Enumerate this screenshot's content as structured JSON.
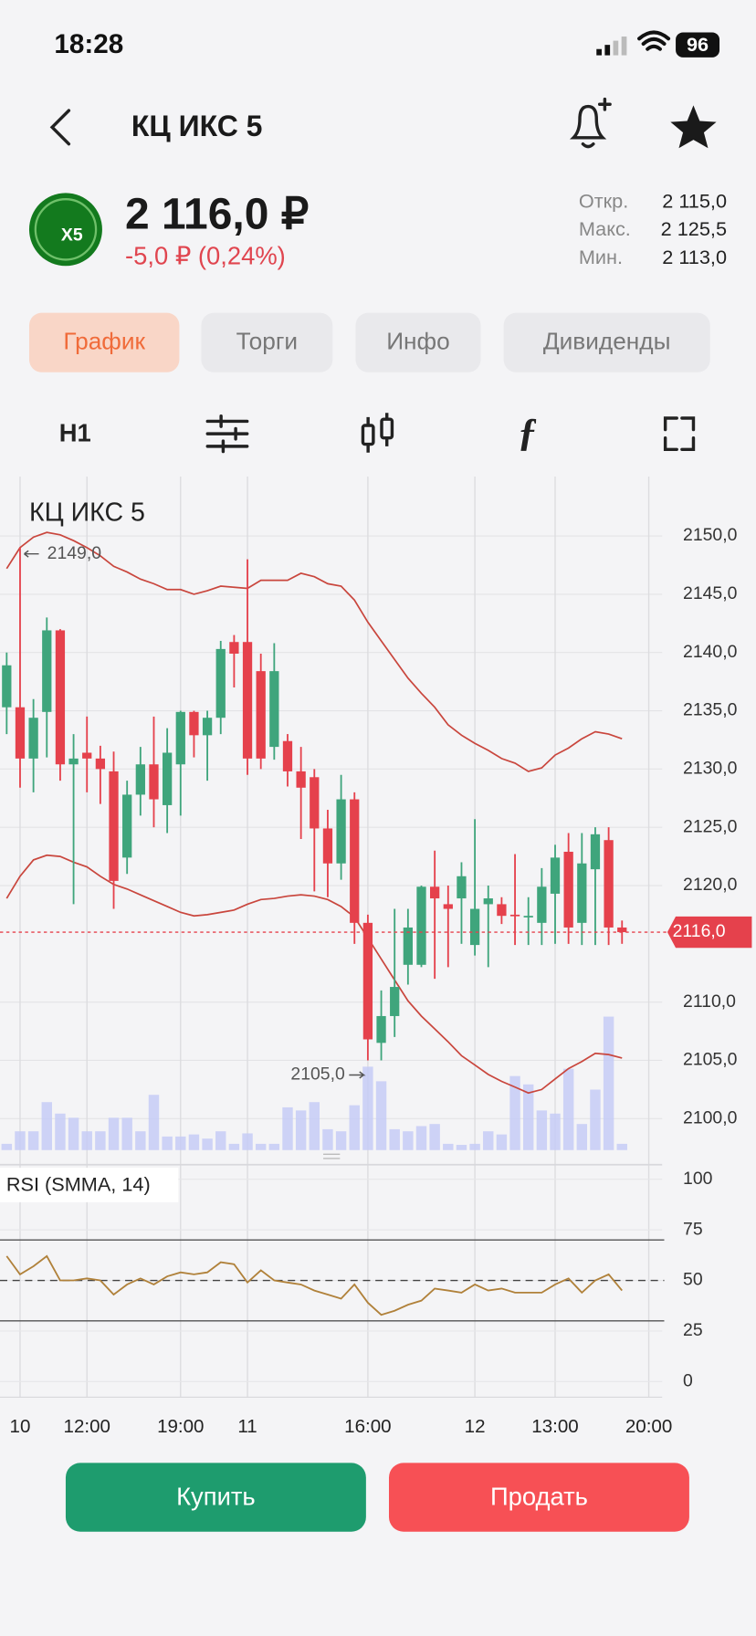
{
  "status_bar": {
    "time": "18:28",
    "battery": "96"
  },
  "header": {
    "title": "КЦ ИКС 5"
  },
  "quote": {
    "logo": "X5",
    "price": "2 116,0 ₽",
    "change": "-5,0 ₽ (0,24%)",
    "stats": [
      {
        "label": "Откр.",
        "value": "2 115,0"
      },
      {
        "label": "Макс.",
        "value": "2 125,5"
      },
      {
        "label": "Мин.",
        "value": "2 113,0"
      }
    ]
  },
  "tabs": [
    "График",
    "Торги",
    "Инфо",
    "Дивиденды"
  ],
  "toolbar": {
    "timeframe": "H1"
  },
  "chart_data": [
    {
      "type": "candlestick",
      "title": "КЦ ИКС 5",
      "open": [
        2135.3,
        2135.3,
        2130.9,
        2134.9,
        2141.9,
        2130.4,
        2131.4,
        2130.9,
        2129.8,
        2122.4,
        2127.8,
        2130.4,
        2126.9,
        2130.4,
        2134.9,
        2132.9,
        2134.4,
        2140.9,
        2140.9,
        2138.4,
        2131.9,
        2132.4,
        2129.8,
        2129.3,
        2124.9,
        2121.9,
        2127.4,
        2116.8,
        2106.5,
        2108.8,
        2113.2,
        2113.2,
        2119.9,
        2118.4,
        2118.9,
        2114.9,
        2118.4,
        2118.4,
        2117.5,
        2117.4,
        2116.8,
        2119.3,
        2122.9,
        2116.8,
        2121.4,
        2123.9,
        2116.4
      ],
      "high": [
        2140.0,
        2149.0,
        2136.0,
        2143.0,
        2142.0,
        2133.0,
        2134.5,
        2132.0,
        2131.5,
        2129.0,
        2131.9,
        2134.5,
        2133.5,
        2135.0,
        2135.0,
        2135.0,
        2141.0,
        2141.5,
        2148.0,
        2139.9,
        2140.8,
        2133.0,
        2131.9,
        2130.0,
        2126.5,
        2129.5,
        2128.0,
        2117.5,
        2111.0,
        2118.0,
        2118.0,
        2120.0,
        2123.0,
        2120.0,
        2122.0,
        2125.7,
        2120.0,
        2119.0,
        2122.7,
        2119.0,
        2121.5,
        2123.5,
        2124.5,
        2124.5,
        2125.0,
        2125.0,
        2117.0
      ],
      "low": [
        2133.0,
        2128.4,
        2128.0,
        2131.0,
        2129.0,
        2118.4,
        2128.0,
        2127.0,
        2118.0,
        2121.0,
        2126.0,
        2125.0,
        2124.5,
        2126.0,
        2131.0,
        2129.0,
        2133.0,
        2137.0,
        2129.5,
        2130.0,
        2130.8,
        2128.5,
        2124.0,
        2119.5,
        2119.0,
        2120.5,
        2115.0,
        2105.0,
        2105.0,
        2107.0,
        2111.5,
        2113.0,
        2112.0,
        2113.0,
        2115.0,
        2114.0,
        2113.0,
        2116.7,
        2114.9,
        2114.9,
        2114.9,
        2115.0,
        2115.0,
        2114.9,
        2114.9,
        2114.9,
        2115.0
      ],
      "close": [
        2138.9,
        2130.9,
        2134.4,
        2141.9,
        2130.4,
        2130.9,
        2130.9,
        2130.0,
        2120.4,
        2127.8,
        2130.4,
        2127.4,
        2131.4,
        2134.9,
        2132.9,
        2134.4,
        2140.3,
        2139.9,
        2130.9,
        2130.9,
        2138.4,
        2129.8,
        2128.4,
        2124.9,
        2121.9,
        2127.4,
        2116.8,
        2106.8,
        2108.8,
        2111.3,
        2116.4,
        2119.9,
        2118.9,
        2118.0,
        2120.8,
        2118.0,
        2118.9,
        2117.4,
        2117.4,
        2117.4,
        2119.9,
        2122.4,
        2116.4,
        2121.9,
        2124.4,
        2116.4,
        2116.0
      ],
      "volume": [
        6,
        18,
        18,
        46,
        35,
        31,
        18,
        18,
        31,
        31,
        18,
        53,
        13,
        13,
        15,
        11,
        18,
        6,
        16,
        6,
        6,
        41,
        38,
        46,
        20,
        18,
        43,
        80,
        66,
        20,
        18,
        23,
        25,
        6,
        5,
        6,
        18,
        15,
        71,
        63,
        38,
        35,
        78,
        25,
        58,
        128,
        6
      ],
      "vlim": [
        0,
        150
      ],
      "series": [
        {
          "color": "#c9463d",
          "values": [
            2147.2,
            2149.0,
            2149.9,
            2150.3,
            2150.1,
            2149.6,
            2149.0,
            2148.3,
            2147.4,
            2146.9,
            2146.3,
            2145.9,
            2145.4,
            2145.4,
            2145.0,
            2145.3,
            2145.7,
            2145.6,
            2145.5,
            2146.2,
            2146.2,
            2146.2,
            2146.8,
            2146.5,
            2145.9,
            2145.7,
            2144.5,
            2142.6,
            2141.0,
            2139.4,
            2137.8,
            2136.5,
            2135.3,
            2133.8,
            2132.9,
            2132.2,
            2131.6,
            2130.9,
            2130.5,
            2129.8,
            2130.1,
            2131.2,
            2131.8,
            2132.6,
            2133.2,
            2133.0,
            2132.6
          ]
        },
        {
          "color": "#c9463d",
          "values": [
            2118.9,
            2120.8,
            2122.2,
            2122.6,
            2122.5,
            2122.0,
            2121.6,
            2120.8,
            2120.1,
            2119.7,
            2119.2,
            2118.7,
            2118.2,
            2117.7,
            2117.4,
            2117.5,
            2117.7,
            2117.9,
            2118.4,
            2118.8,
            2118.9,
            2119.1,
            2119.2,
            2119.1,
            2118.8,
            2118.2,
            2117.3,
            2115.5,
            2113.7,
            2111.9,
            2110.1,
            2108.8,
            2107.7,
            2106.6,
            2105.4,
            2104.6,
            2103.8,
            2103.2,
            2102.7,
            2102.2,
            2102.5,
            2103.4,
            2104.3,
            2104.9,
            2105.6,
            2105.5,
            2105.2
          ]
        }
      ],
      "up_color": "#3fa57c",
      "down_color": "#e5414c",
      "volume_color": "#c5cbf6",
      "annotations": {
        "high_label": "2149,0",
        "low_label": "2105,0",
        "last_label": "2116,0"
      },
      "ylim": [
        2097.3,
        2155.1
      ],
      "yticks": [
        {
          "value": 2150,
          "label": "2150,0"
        },
        {
          "value": 2145,
          "label": "2145,0"
        },
        {
          "value": 2140,
          "label": "2140,0"
        },
        {
          "value": 2135,
          "label": "2135,0"
        },
        {
          "value": 2130,
          "label": "2130,0"
        },
        {
          "value": 2125,
          "label": "2125,0"
        },
        {
          "value": 2120,
          "label": "2120,0"
        },
        {
          "value": 2110,
          "label": "2110,0"
        },
        {
          "value": 2105,
          "label": "2105,0"
        },
        {
          "value": 2100,
          "label": "2100,0"
        }
      ],
      "xlim": [
        -0.5,
        49
      ],
      "xticks": [
        {
          "value": 1,
          "label": "10"
        },
        {
          "value": 6,
          "label": "12:00"
        },
        {
          "value": 13,
          "label": "19:00"
        },
        {
          "value": 18,
          "label": "11"
        },
        {
          "value": 27,
          "label": "16:00"
        },
        {
          "value": 35,
          "label": "12"
        },
        {
          "value": 41,
          "label": "13:00"
        },
        {
          "value": 48,
          "label": "20:00"
        }
      ],
      "grid": true
    },
    {
      "type": "line",
      "title": "RSI (SMMA, 14)",
      "color": "#b0813a",
      "values": [
        62,
        53,
        57,
        62,
        50,
        50,
        51,
        50,
        43,
        48,
        51,
        48,
        52,
        54,
        53,
        54,
        59,
        58,
        49,
        55,
        50,
        49,
        48,
        45,
        43,
        41,
        48,
        39,
        33,
        35,
        38,
        40,
        46,
        45,
        44,
        48,
        45,
        46,
        44,
        44,
        44,
        48,
        51,
        44,
        50,
        53,
        45
      ],
      "levels": [
        70,
        50,
        30
      ],
      "ylim": [
        -7.7,
        106.7
      ],
      "yticks": [
        100,
        75,
        50,
        25,
        0
      ],
      "grid": true
    }
  ],
  "buttons": [
    "Купить",
    "Продать"
  ]
}
